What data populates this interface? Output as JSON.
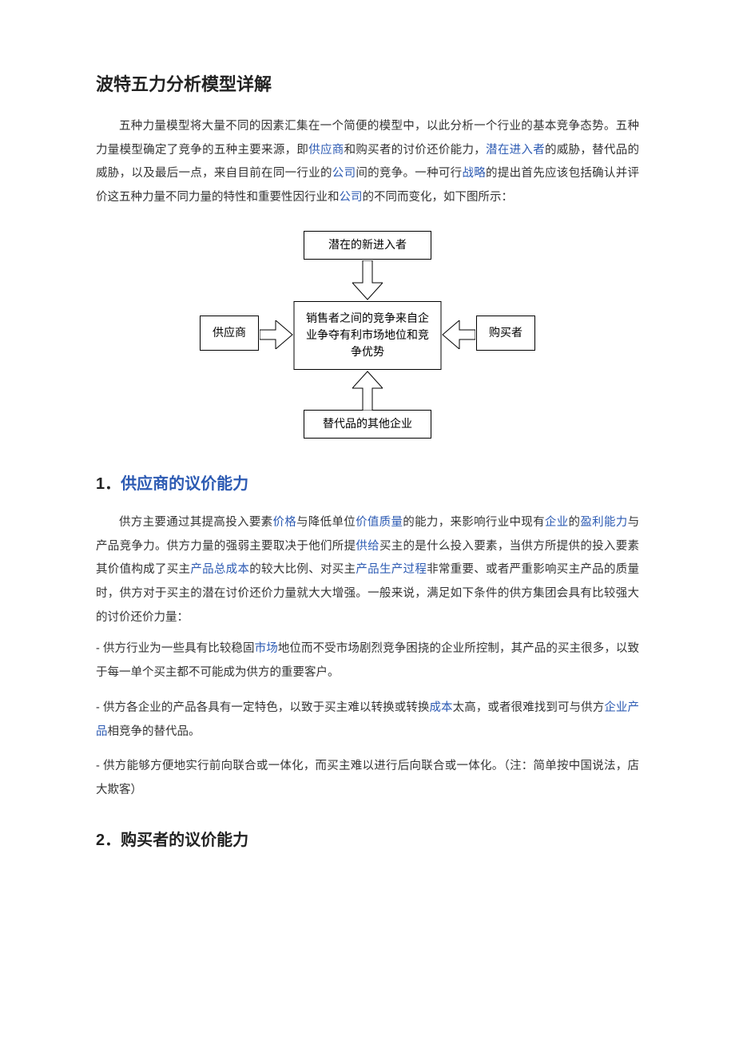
{
  "title": "波特五力分析模型详解",
  "intro": {
    "segments": [
      {
        "text": "五种力量模型将大量不同的因素汇集在一个简便的模型中，以此分析一个行业的基本竞争态势。五种力量模型确定了竞争的五种主要来源，即"
      },
      {
        "text": "供应商",
        "link": true
      },
      {
        "text": "和购买者的讨价还价能力，"
      },
      {
        "text": "潜在进入者",
        "link": true
      },
      {
        "text": "的威胁，替代品的威胁，以及最后一点，来自目前在同一行业的"
      },
      {
        "text": "公司",
        "link": true
      },
      {
        "text": "间的竞争。一种可行"
      },
      {
        "text": "战略",
        "link": true
      },
      {
        "text": "的提出首先应该包括确认并评价这五种力量不同力量的特性和重要性因行业和"
      },
      {
        "text": "公司",
        "link": true
      },
      {
        "text": "的不同而变化，如下图所示："
      }
    ]
  },
  "diagram": {
    "type": "flowchart",
    "background_color": "#ffffff",
    "border_color": "#000000",
    "arrow_fill": "#ffffff",
    "arrow_stroke": "#000000",
    "font_size": 14,
    "nodes": {
      "top": {
        "label": "潜在的新进入者"
      },
      "left": {
        "label": "供应商"
      },
      "center": {
        "label": "销售者之间的竞争来自企业争夺有利市场地位和竞争优势"
      },
      "right": {
        "label": "购买者"
      },
      "bottom": {
        "label": "替代品的其他企业"
      }
    }
  },
  "section1": {
    "number": "1．",
    "title": "供应商的议价能力",
    "para_segments": [
      {
        "text": "供方主要通过其提高投入要素"
      },
      {
        "text": "价格",
        "link": true
      },
      {
        "text": "与降低单位"
      },
      {
        "text": "价值质量",
        "link": true
      },
      {
        "text": "的能力，来影响行业中现有"
      },
      {
        "text": "企业",
        "link": true
      },
      {
        "text": "的"
      },
      {
        "text": "盈利能力",
        "link": true
      },
      {
        "text": "与产品竞争力。供方力量的强弱主要取决于他们所提"
      },
      {
        "text": "供给",
        "link": true
      },
      {
        "text": "买主的是什么投入要素，当供方所提供的投入要素其价值构成了买主"
      },
      {
        "text": "产品总成本",
        "link": true
      },
      {
        "text": "的较大比例、对买主"
      },
      {
        "text": "产品生产过程",
        "link": true
      },
      {
        "text": "非常重要、或者严重影响买主产品的质量时，供方对于买主的潜在讨价还价力量就大大增强。一般来说，满足如下条件的供方集团会具有比较强大的讨价还价力量："
      }
    ],
    "bullet1": [
      {
        "text": "- 供方行业为一些具有比较稳固"
      },
      {
        "text": "市场",
        "link": true
      },
      {
        "text": "地位而不受市场剧烈竞争困挠的企业所控制，其产品的买主很多，以致于每一单个买主都不可能成为供方的重要客户。"
      }
    ],
    "bullet2": [
      {
        "text": "- 供方各企业的产品各具有一定特色，以致于买主难以转换或转换"
      },
      {
        "text": "成本",
        "link": true
      },
      {
        "text": "太高，或者很难找到可与供方"
      },
      {
        "text": "企业产品",
        "link": true
      },
      {
        "text": "相竞争的替代品。"
      }
    ],
    "bullet3": [
      {
        "text": "- 供方能够方便地实行前向联合或一体化，而买主难以进行后向联合或一体化。（注：简单按中国说法，店大欺客）"
      }
    ]
  },
  "section2": {
    "number": "2．",
    "title": "购买者的议价能力"
  },
  "colors": {
    "link_color": "#2d5bb3",
    "text_color": "#333333",
    "heading_color": "#222222"
  }
}
